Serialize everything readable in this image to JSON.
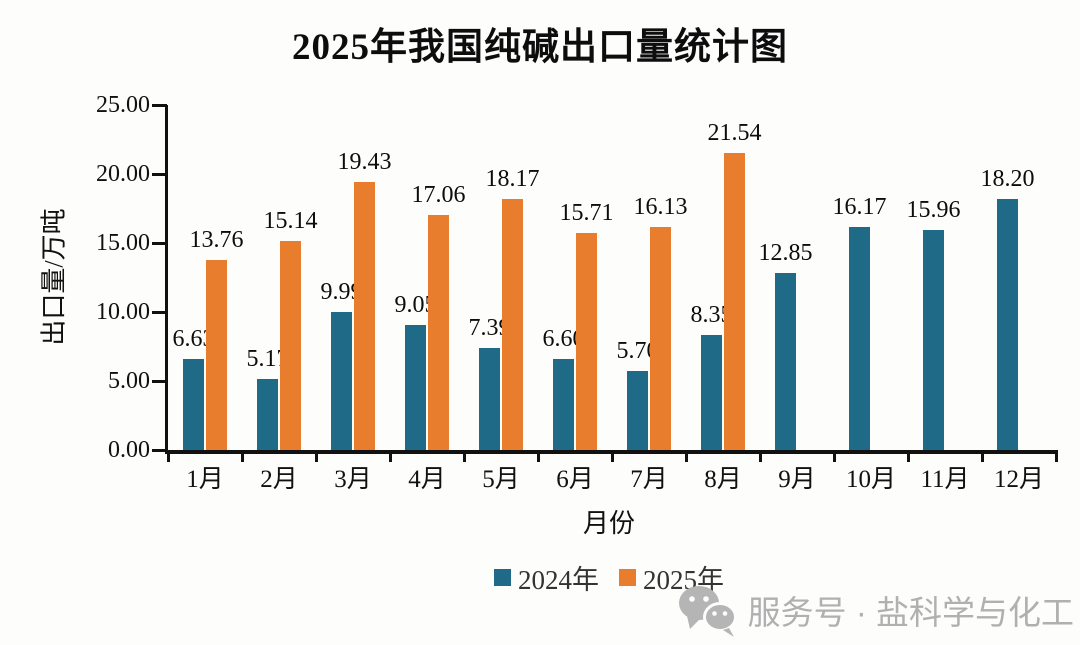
{
  "title": "2025年我国纯碱出口量统计图",
  "watermark": {
    "icon": "wechat-icon",
    "text": "服务号 · 盐科学与化工"
  },
  "colors": {
    "series_2024": "#1e6a87",
    "series_2025": "#e87d2e",
    "axis": "#111111",
    "watermark_gray": "#b0b0b0"
  },
  "chart_data": {
    "type": "bar",
    "title": "2025年我国纯碱出口量统计图",
    "categories": [
      "1月",
      "2月",
      "3月",
      "4月",
      "5月",
      "6月",
      "7月",
      "8月",
      "9月",
      "10月",
      "11月",
      "12月"
    ],
    "series": [
      {
        "name": "2024年",
        "color": "#1e6a87",
        "values": [
          6.63,
          5.17,
          9.99,
          9.05,
          7.39,
          6.6,
          5.7,
          8.35,
          12.85,
          16.17,
          15.96,
          18.2
        ]
      },
      {
        "name": "2025年",
        "color": "#e87d2e",
        "values": [
          13.76,
          15.14,
          19.43,
          17.06,
          18.17,
          15.71,
          16.13,
          21.54,
          null,
          null,
          null,
          null
        ]
      }
    ],
    "xlabel": "月份",
    "ylabel": "出口量/万吨",
    "ylim": [
      0,
      25
    ],
    "ytick_step": 5,
    "ytick_labels": [
      "0.00",
      "5.00",
      "10.00",
      "15.00",
      "20.00",
      "25.00"
    ],
    "grid": false,
    "legend_position": "bottom",
    "value_labels": true
  }
}
